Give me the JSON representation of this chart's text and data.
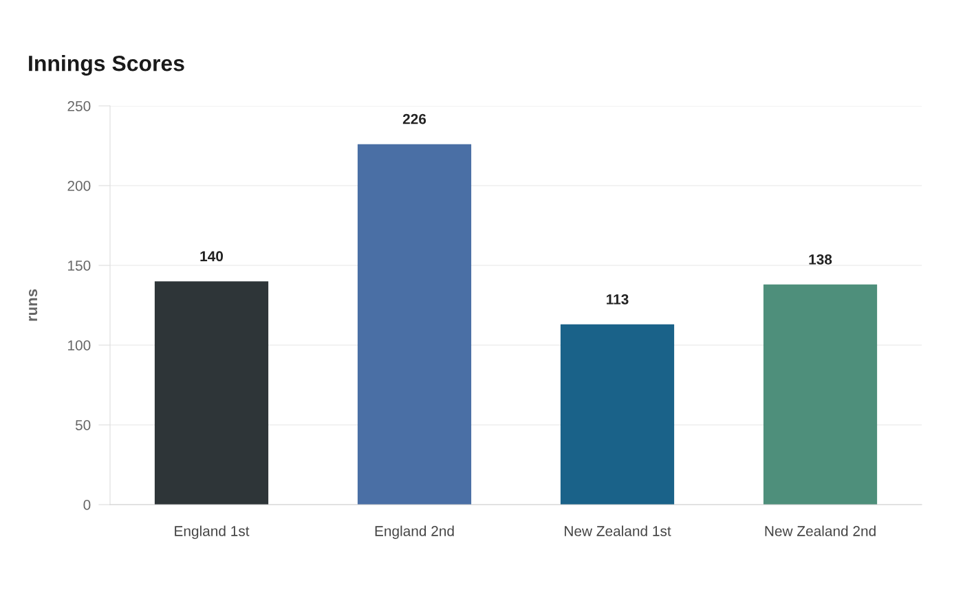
{
  "chart_data": {
    "type": "bar",
    "title": "Innings Scores",
    "ylabel": "runs",
    "categories": [
      "England 1st",
      "England 2nd",
      "New Zealand 1st",
      "New Zealand 2nd"
    ],
    "values": [
      140,
      226,
      113,
      138
    ],
    "colors": [
      "#2e3538",
      "#4a6fa5",
      "#1a6289",
      "#4e8f7b"
    ],
    "ylim": [
      0,
      250
    ],
    "yticks": [
      0,
      50,
      100,
      150,
      200,
      250
    ],
    "grid": "y",
    "data_labels": true
  }
}
